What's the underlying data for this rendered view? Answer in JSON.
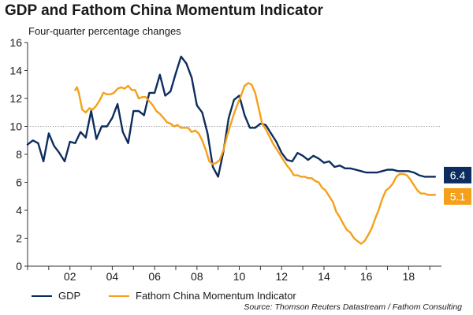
{
  "chart_data": {
    "type": "line",
    "title": "GDP and Fathom China Momentum Indicator",
    "subtitle": "Four-quarter percentage changes",
    "ylim": [
      0,
      16
    ],
    "yticks": [
      0,
      2,
      4,
      6,
      8,
      10,
      12,
      14,
      16
    ],
    "xlim": [
      2000.0,
      2019.55
    ],
    "xticks": [
      {
        "value": 2002,
        "label": "02"
      },
      {
        "value": 2004,
        "label": "04"
      },
      {
        "value": 2006,
        "label": "06"
      },
      {
        "value": 2008,
        "label": "08"
      },
      {
        "value": 2010,
        "label": "10"
      },
      {
        "value": 2012,
        "label": "12"
      },
      {
        "value": 2014,
        "label": "14"
      },
      {
        "value": 2016,
        "label": "16"
      },
      {
        "value": 2018,
        "label": "18"
      }
    ],
    "reference_line": {
      "value": 10,
      "style": "dotted"
    },
    "legend_position": "bottom-left",
    "series": [
      {
        "name": "GDP",
        "color": "#0d2d5e",
        "end_label": "6.4",
        "points": [
          [
            2000.0,
            8.7
          ],
          [
            2000.25,
            9.0
          ],
          [
            2000.5,
            8.8
          ],
          [
            2000.75,
            7.5
          ],
          [
            2001.0,
            9.5
          ],
          [
            2001.25,
            8.6
          ],
          [
            2001.5,
            8.1
          ],
          [
            2001.75,
            7.5
          ],
          [
            2002.0,
            8.9
          ],
          [
            2002.25,
            8.8
          ],
          [
            2002.5,
            9.6
          ],
          [
            2002.75,
            9.2
          ],
          [
            2003.0,
            11.1
          ],
          [
            2003.25,
            9.1
          ],
          [
            2003.5,
            10.0
          ],
          [
            2003.75,
            10.0
          ],
          [
            2004.0,
            10.6
          ],
          [
            2004.25,
            11.6
          ],
          [
            2004.5,
            9.6
          ],
          [
            2004.75,
            8.8
          ],
          [
            2005.0,
            11.1
          ],
          [
            2005.25,
            11.1
          ],
          [
            2005.5,
            10.8
          ],
          [
            2005.75,
            12.4
          ],
          [
            2006.0,
            12.4
          ],
          [
            2006.25,
            13.7
          ],
          [
            2006.5,
            12.2
          ],
          [
            2006.75,
            12.5
          ],
          [
            2007.0,
            13.8
          ],
          [
            2007.25,
            15.0
          ],
          [
            2007.5,
            14.5
          ],
          [
            2007.75,
            13.5
          ],
          [
            2008.0,
            11.5
          ],
          [
            2008.25,
            11.0
          ],
          [
            2008.5,
            9.5
          ],
          [
            2008.75,
            7.1
          ],
          [
            2009.0,
            6.4
          ],
          [
            2009.25,
            8.2
          ],
          [
            2009.5,
            10.6
          ],
          [
            2009.75,
            11.9
          ],
          [
            2010.0,
            12.2
          ],
          [
            2010.25,
            10.8
          ],
          [
            2010.5,
            9.9
          ],
          [
            2010.75,
            9.9
          ],
          [
            2011.0,
            10.2
          ],
          [
            2011.25,
            10.1
          ],
          [
            2011.5,
            9.5
          ],
          [
            2011.75,
            8.9
          ],
          [
            2012.0,
            8.1
          ],
          [
            2012.25,
            7.6
          ],
          [
            2012.5,
            7.5
          ],
          [
            2012.75,
            8.1
          ],
          [
            2013.0,
            7.9
          ],
          [
            2013.25,
            7.6
          ],
          [
            2013.5,
            7.9
          ],
          [
            2013.75,
            7.7
          ],
          [
            2014.0,
            7.4
          ],
          [
            2014.25,
            7.5
          ],
          [
            2014.5,
            7.1
          ],
          [
            2014.75,
            7.2
          ],
          [
            2015.0,
            7.0
          ],
          [
            2015.25,
            7.0
          ],
          [
            2015.5,
            6.9
          ],
          [
            2015.75,
            6.8
          ],
          [
            2016.0,
            6.7
          ],
          [
            2016.25,
            6.7
          ],
          [
            2016.5,
            6.7
          ],
          [
            2016.75,
            6.8
          ],
          [
            2017.0,
            6.9
          ],
          [
            2017.25,
            6.9
          ],
          [
            2017.5,
            6.8
          ],
          [
            2017.75,
            6.8
          ],
          [
            2018.0,
            6.8
          ],
          [
            2018.25,
            6.7
          ],
          [
            2018.5,
            6.5
          ],
          [
            2018.75,
            6.4
          ],
          [
            2019.0,
            6.4
          ],
          [
            2019.25,
            6.4
          ]
        ]
      },
      {
        "name": "Fathom China Momentum Indicator",
        "color": "#f5a01a",
        "end_label": "5.1",
        "points": [
          [
            2002.25,
            12.6
          ],
          [
            2002.33,
            12.8
          ],
          [
            2002.42,
            12.4
          ],
          [
            2002.58,
            11.2
          ],
          [
            2002.75,
            11.0
          ],
          [
            2002.92,
            11.3
          ],
          [
            2003.08,
            11.2
          ],
          [
            2003.25,
            11.5
          ],
          [
            2003.42,
            11.9
          ],
          [
            2003.58,
            12.4
          ],
          [
            2003.75,
            12.3
          ],
          [
            2003.92,
            12.3
          ],
          [
            2004.08,
            12.4
          ],
          [
            2004.25,
            12.7
          ],
          [
            2004.42,
            12.8
          ],
          [
            2004.58,
            12.7
          ],
          [
            2004.75,
            12.9
          ],
          [
            2004.92,
            12.6
          ],
          [
            2005.08,
            12.6
          ],
          [
            2005.25,
            12.0
          ],
          [
            2005.42,
            12.1
          ],
          [
            2005.58,
            12.1
          ],
          [
            2005.75,
            11.8
          ],
          [
            2005.92,
            11.5
          ],
          [
            2006.08,
            11.1
          ],
          [
            2006.25,
            10.9
          ],
          [
            2006.42,
            10.6
          ],
          [
            2006.58,
            10.3
          ],
          [
            2006.75,
            10.2
          ],
          [
            2006.92,
            10.0
          ],
          [
            2007.08,
            10.1
          ],
          [
            2007.25,
            9.9
          ],
          [
            2007.42,
            9.9
          ],
          [
            2007.58,
            9.9
          ],
          [
            2007.75,
            9.6
          ],
          [
            2007.92,
            9.7
          ],
          [
            2008.08,
            9.5
          ],
          [
            2008.25,
            9.0
          ],
          [
            2008.42,
            8.3
          ],
          [
            2008.58,
            7.5
          ],
          [
            2008.75,
            7.3
          ],
          [
            2008.92,
            7.4
          ],
          [
            2009.08,
            7.6
          ],
          [
            2009.25,
            8.3
          ],
          [
            2009.42,
            9.3
          ],
          [
            2009.58,
            10.1
          ],
          [
            2009.75,
            10.9
          ],
          [
            2009.92,
            11.6
          ],
          [
            2010.08,
            12.2
          ],
          [
            2010.25,
            12.9
          ],
          [
            2010.42,
            13.1
          ],
          [
            2010.58,
            13.0
          ],
          [
            2010.75,
            12.4
          ],
          [
            2010.92,
            11.3
          ],
          [
            2011.08,
            10.2
          ],
          [
            2011.25,
            9.8
          ],
          [
            2011.42,
            9.3
          ],
          [
            2011.58,
            8.8
          ],
          [
            2011.75,
            8.4
          ],
          [
            2011.92,
            8.0
          ],
          [
            2012.08,
            7.6
          ],
          [
            2012.25,
            7.2
          ],
          [
            2012.42,
            6.9
          ],
          [
            2012.58,
            6.5
          ],
          [
            2012.75,
            6.5
          ],
          [
            2012.92,
            6.4
          ],
          [
            2013.08,
            6.4
          ],
          [
            2013.25,
            6.3
          ],
          [
            2013.42,
            6.3
          ],
          [
            2013.58,
            6.1
          ],
          [
            2013.75,
            6.0
          ],
          [
            2013.92,
            5.6
          ],
          [
            2014.08,
            5.4
          ],
          [
            2014.25,
            5.0
          ],
          [
            2014.42,
            4.6
          ],
          [
            2014.58,
            3.9
          ],
          [
            2014.75,
            3.5
          ],
          [
            2014.92,
            3.0
          ],
          [
            2015.08,
            2.6
          ],
          [
            2015.25,
            2.4
          ],
          [
            2015.42,
            2.0
          ],
          [
            2015.58,
            1.8
          ],
          [
            2015.75,
            1.6
          ],
          [
            2015.92,
            1.8
          ],
          [
            2016.08,
            2.2
          ],
          [
            2016.25,
            2.7
          ],
          [
            2016.42,
            3.4
          ],
          [
            2016.58,
            4.0
          ],
          [
            2016.75,
            4.8
          ],
          [
            2016.92,
            5.4
          ],
          [
            2017.08,
            5.6
          ],
          [
            2017.25,
            5.9
          ],
          [
            2017.42,
            6.4
          ],
          [
            2017.58,
            6.6
          ],
          [
            2017.75,
            6.6
          ],
          [
            2017.92,
            6.5
          ],
          [
            2018.08,
            6.2
          ],
          [
            2018.25,
            5.8
          ],
          [
            2018.42,
            5.4
          ],
          [
            2018.58,
            5.2
          ],
          [
            2018.75,
            5.2
          ],
          [
            2018.92,
            5.1
          ],
          [
            2019.08,
            5.1
          ],
          [
            2019.25,
            5.1
          ]
        ]
      }
    ]
  },
  "source": "Source: Thomson Reuters Datastream / Fathom Consulting"
}
